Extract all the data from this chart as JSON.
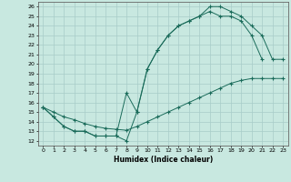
{
  "title": "",
  "xlabel": "Humidex (Indice chaleur)",
  "bg_color": "#c8e8e0",
  "line_color": "#1a6b5a",
  "grid_color": "#a8ccc8",
  "xlim": [
    -0.5,
    23.5
  ],
  "ylim": [
    11.5,
    26.5
  ],
  "xticks": [
    0,
    1,
    2,
    3,
    4,
    5,
    6,
    7,
    8,
    9,
    10,
    11,
    12,
    13,
    14,
    15,
    16,
    17,
    18,
    19,
    20,
    21,
    22,
    23
  ],
  "yticks": [
    12,
    13,
    14,
    15,
    16,
    17,
    18,
    19,
    20,
    21,
    22,
    23,
    24,
    25,
    26
  ],
  "line1_x": [
    0,
    1,
    2,
    3,
    4,
    5,
    6,
    7,
    8,
    9,
    10,
    11,
    12,
    13,
    14,
    15,
    16,
    17,
    18,
    19,
    20,
    21
  ],
  "line1_y": [
    15.5,
    14.5,
    13.5,
    13.0,
    13.0,
    12.5,
    12.5,
    12.5,
    12.0,
    15.0,
    19.5,
    21.5,
    23.0,
    24.0,
    24.5,
    25.0,
    25.5,
    25.0,
    25.0,
    24.5,
    23.0,
    20.5
  ],
  "line2_x": [
    0,
    1,
    2,
    3,
    4,
    5,
    6,
    7,
    8,
    9,
    10,
    11,
    12,
    13,
    14,
    15,
    16,
    17,
    18,
    19,
    20,
    21,
    22,
    23
  ],
  "line2_y": [
    15.5,
    14.5,
    13.5,
    13.0,
    13.0,
    12.5,
    12.5,
    12.5,
    17.0,
    15.0,
    19.5,
    21.5,
    23.0,
    24.0,
    24.5,
    25.0,
    26.0,
    26.0,
    25.5,
    25.0,
    24.0,
    23.0,
    20.5,
    20.5
  ],
  "line3_x": [
    0,
    1,
    2,
    3,
    4,
    5,
    6,
    7,
    8,
    9,
    10,
    11,
    12,
    13,
    14,
    15,
    16,
    17,
    18,
    19,
    20,
    21,
    22,
    23
  ],
  "line3_y": [
    15.5,
    15.0,
    14.5,
    14.2,
    13.8,
    13.5,
    13.3,
    13.2,
    13.1,
    13.5,
    14.0,
    14.5,
    15.0,
    15.5,
    16.0,
    16.5,
    17.0,
    17.5,
    18.0,
    18.3,
    18.5,
    18.5,
    18.5,
    18.5
  ]
}
